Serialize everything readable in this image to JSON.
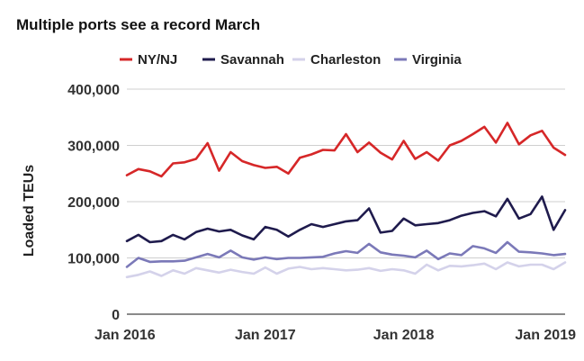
{
  "chart_data": {
    "type": "line",
    "title": "Multiple ports see a record March",
    "ylabel": "Loaded TEUs",
    "xlabel": "",
    "ylim": [
      0,
      400000
    ],
    "y_ticks": [
      "0",
      "100,000",
      "200,000",
      "300,000",
      "400,000"
    ],
    "y_tick_values": [
      0,
      100000,
      200000,
      300000,
      400000
    ],
    "x_tick_labels": [
      "Jan 2016",
      "Jan 2017",
      "Jan 2018",
      "Jan 2019"
    ],
    "x_tick_index": [
      0,
      12,
      24,
      36
    ],
    "legend_position": "top",
    "grid": true,
    "series": [
      {
        "name": "NY/NJ",
        "color": "#d62728",
        "values": [
          247000,
          258000,
          254000,
          245000,
          268000,
          270000,
          276000,
          304000,
          255000,
          288000,
          272000,
          265000,
          260000,
          262000,
          250000,
          278000,
          284000,
          292000,
          291000,
          320000,
          288000,
          305000,
          287000,
          275000,
          308000,
          276000,
          288000,
          273000,
          300000,
          308000,
          320000,
          333000,
          305000,
          340000,
          302000,
          318000,
          326000,
          296000,
          283000
        ]
      },
      {
        "name": "Savannah",
        "color": "#1f1b4d",
        "values": [
          130000,
          141000,
          128000,
          130000,
          141000,
          133000,
          146000,
          152000,
          147000,
          150000,
          140000,
          133000,
          155000,
          150000,
          138000,
          150000,
          160000,
          155000,
          160000,
          165000,
          167000,
          188000,
          145000,
          148000,
          170000,
          158000,
          160000,
          162000,
          167000,
          175000,
          180000,
          183000,
          174000,
          205000,
          170000,
          178000,
          209000,
          150000,
          185000
        ]
      },
      {
        "name": "Charleston",
        "color": "#d4d2ea",
        "values": [
          66000,
          70000,
          76000,
          68000,
          78000,
          72000,
          82000,
          78000,
          74000,
          79000,
          75000,
          72000,
          83000,
          72000,
          81000,
          84000,
          80000,
          82000,
          80000,
          78000,
          79000,
          82000,
          77000,
          80000,
          78000,
          72000,
          88000,
          78000,
          86000,
          85000,
          87000,
          90000,
          80000,
          92000,
          85000,
          88000,
          88000,
          80000,
          92000
        ]
      },
      {
        "name": "Virginia",
        "color": "#7b79b8",
        "values": [
          84000,
          100000,
          93000,
          94000,
          94000,
          95000,
          101000,
          107000,
          101000,
          113000,
          101000,
          97000,
          101000,
          98000,
          100000,
          100000,
          101000,
          102000,
          108000,
          112000,
          109000,
          125000,
          110000,
          106000,
          104000,
          101000,
          113000,
          98000,
          108000,
          105000,
          121000,
          117000,
          109000,
          128000,
          111000,
          110000,
          108000,
          105000,
          107000
        ]
      }
    ]
  }
}
